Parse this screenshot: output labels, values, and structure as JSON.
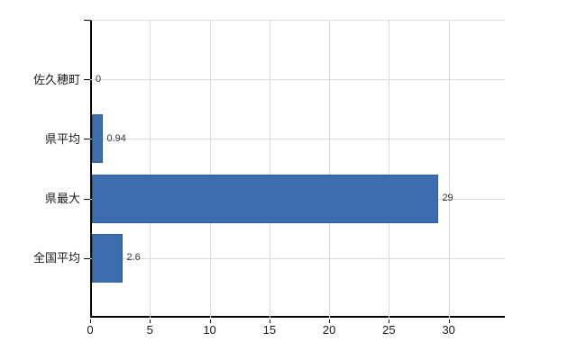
{
  "chart_data": {
    "type": "bar",
    "orientation": "horizontal",
    "categories": [
      "佐久穂町",
      "県平均",
      "県最大",
      "全国平均"
    ],
    "values": [
      0,
      0.94,
      29,
      2.6
    ],
    "value_labels": [
      "0",
      "0.94",
      "29",
      "2.6"
    ],
    "xticks": [
      0,
      5,
      10,
      15,
      20,
      25,
      30
    ],
    "xlim": [
      0,
      34.7
    ],
    "grid": true,
    "legend": null,
    "colors": {
      "bar": "#3b6daf",
      "bar_border": "#2d5c98",
      "grid": "#dadada",
      "axis": "#000000",
      "category_text": "#1a1a1a",
      "tick_text": "#1a1a1a",
      "value_text": "#333333",
      "background": "#ffffff"
    }
  }
}
